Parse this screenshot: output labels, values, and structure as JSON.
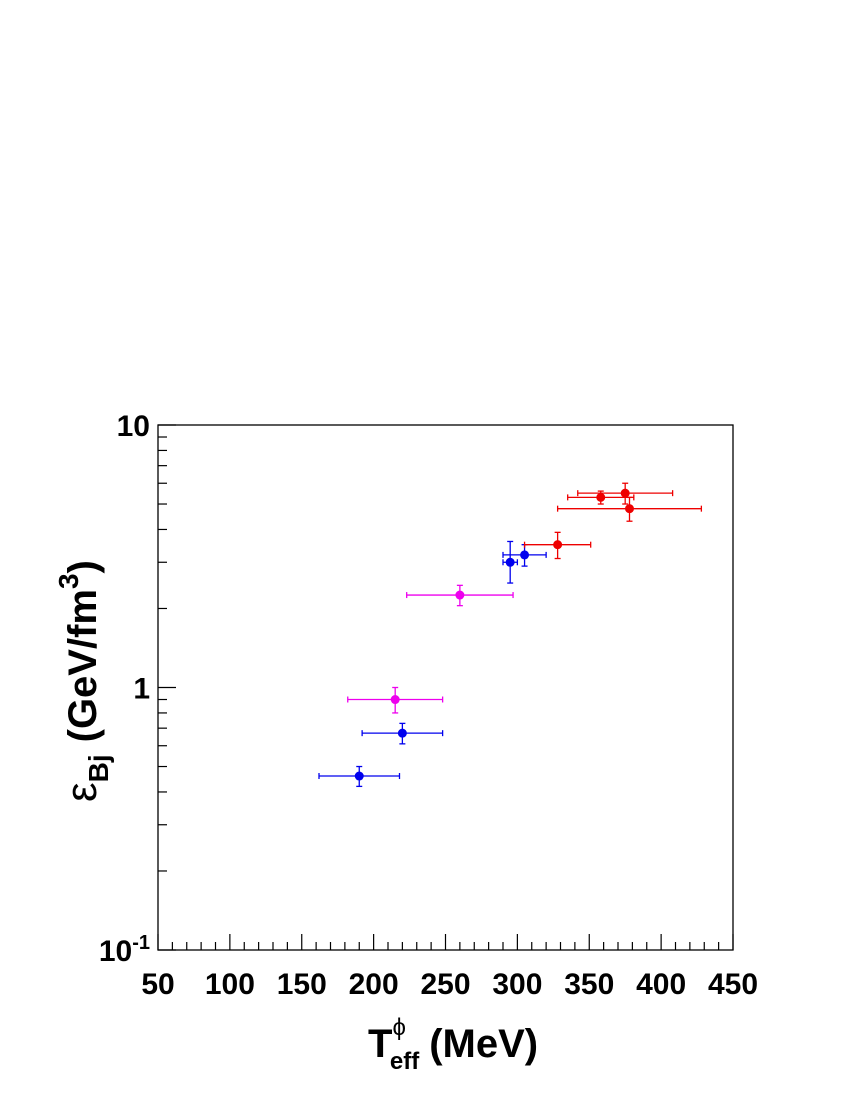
{
  "chart_data": {
    "type": "scatter",
    "title": "",
    "xlabel": {
      "base": "T",
      "subscript": "eff",
      "superscript": "ϕ",
      "unit": "(MeV)"
    },
    "ylabel": {
      "base": "ε",
      "subscript": "Bj",
      "unit_prefix": "(GeV/fm",
      "unit_superscript": "3",
      "unit_suffix": ")"
    },
    "xlim": [
      50,
      450
    ],
    "ylim": [
      0.1,
      10
    ],
    "yscale": "log",
    "x_ticks": [
      "50",
      "100",
      "150",
      "200",
      "250",
      "300",
      "350",
      "400",
      "450"
    ],
    "x_tick_values": [
      50,
      100,
      150,
      200,
      250,
      300,
      350,
      400,
      450
    ],
    "y_ticks": [
      {
        "value": 10,
        "base": "10",
        "exp": ""
      },
      {
        "value": 1,
        "base": "1",
        "exp": ""
      },
      {
        "value": 0.1,
        "base": "10",
        "exp": "-1"
      }
    ],
    "grid": false,
    "legend": "none",
    "series": [
      {
        "color": "#0000ee",
        "points": [
          {
            "x": 190,
            "y": 0.46,
            "xerr": [
              28,
              28
            ],
            "yerr": [
              0.04,
              0.04
            ]
          },
          {
            "x": 220,
            "y": 0.67,
            "xerr": [
              28,
              28
            ],
            "yerr": [
              0.06,
              0.06
            ]
          },
          {
            "x": 295,
            "y": 3.0,
            "xerr": [
              5,
              5
            ],
            "yerr": [
              0.5,
              0.6
            ]
          },
          {
            "x": 305,
            "y": 3.2,
            "xerr": [
              15,
              15
            ],
            "yerr": [
              0.3,
              0.3
            ]
          }
        ]
      },
      {
        "color": "#ee00ee",
        "points": [
          {
            "x": 215,
            "y": 0.9,
            "xerr": [
              33,
              33
            ],
            "yerr": [
              0.1,
              0.1
            ]
          },
          {
            "x": 260,
            "y": 2.25,
            "xerr": [
              37,
              37
            ],
            "yerr": [
              0.2,
              0.2
            ]
          }
        ]
      },
      {
        "color": "#ee0000",
        "points": [
          {
            "x": 328,
            "y": 3.5,
            "xerr": [
              23,
              23
            ],
            "yerr": [
              0.4,
              0.4
            ]
          },
          {
            "x": 358,
            "y": 5.3,
            "xerr": [
              23,
              23
            ],
            "yerr": [
              0.3,
              0.3
            ]
          },
          {
            "x": 375,
            "y": 5.5,
            "xerr": [
              33,
              33
            ],
            "yerr": [
              0.5,
              0.5
            ]
          },
          {
            "x": 378,
            "y": 4.8,
            "xerr": [
              50,
              50
            ],
            "yerr": [
              0.5,
              0.5
            ]
          }
        ]
      }
    ]
  }
}
